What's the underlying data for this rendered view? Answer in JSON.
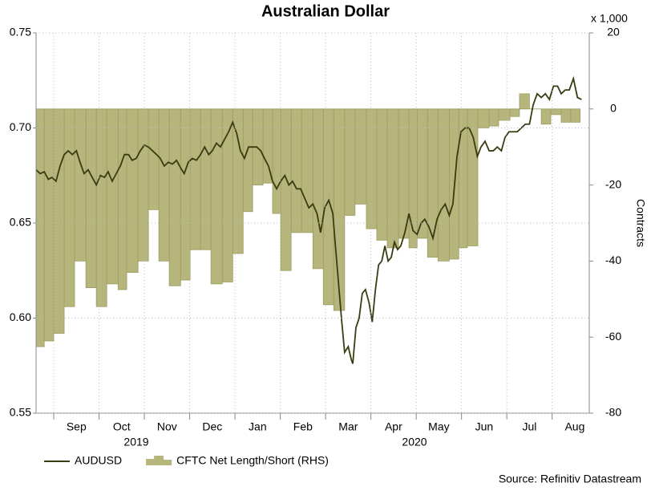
{
  "chart_data": {
    "type": "line",
    "title": "Australian Dollar",
    "y2_label": "Contracts",
    "y2_multiplier": "x 1,000",
    "source": "Source: Refinitiv Datastream",
    "year_labels": [
      "2019",
      "2020"
    ],
    "xlim": [
      0.61,
      12.82
    ],
    "xticks": [
      {
        "value": 1.5,
        "label": "Sep"
      },
      {
        "value": 2.5,
        "label": "Oct"
      },
      {
        "value": 3.5,
        "label": "Nov"
      },
      {
        "value": 4.5,
        "label": "Dec"
      },
      {
        "value": 5.5,
        "label": "Jan"
      },
      {
        "value": 6.5,
        "label": "Feb"
      },
      {
        "value": 7.5,
        "label": "Mar"
      },
      {
        "value": 8.5,
        "label": "Apr"
      },
      {
        "value": 9.5,
        "label": "May"
      },
      {
        "value": 10.5,
        "label": "Jun"
      },
      {
        "value": 11.5,
        "label": "Jul"
      },
      {
        "value": 12.5,
        "label": "Aug"
      }
    ],
    "ylim": [
      0.55,
      0.75
    ],
    "yticks": [
      0.55,
      {
        "value": 0.6,
        "label": "0.60"
      },
      0.65,
      {
        "value": 0.7,
        "label": "0.70"
      },
      0.75
    ],
    "y2lim": [
      -80,
      20
    ],
    "y2ticks": [
      -80,
      -60,
      -40,
      -20,
      0,
      20
    ],
    "grid": true,
    "series": [
      {
        "name": "AUDUSD",
        "color": "#3b3b12",
        "kind": "line",
        "x": [
          0.61,
          0.7,
          0.79,
          0.88,
          0.96,
          1.05,
          1.14,
          1.23,
          1.32,
          1.41,
          1.5,
          1.58,
          1.67,
          1.76,
          1.85,
          1.94,
          2.03,
          2.12,
          2.2,
          2.29,
          2.38,
          2.47,
          2.56,
          2.65,
          2.73,
          2.82,
          2.91,
          3.0,
          3.09,
          3.18,
          3.27,
          3.35,
          3.44,
          3.53,
          3.62,
          3.71,
          3.8,
          3.88,
          3.97,
          4.06,
          4.15,
          4.24,
          4.33,
          4.42,
          4.5,
          4.59,
          4.68,
          4.77,
          4.86,
          4.95,
          5.04,
          5.12,
          5.21,
          5.3,
          5.39,
          5.48,
          5.57,
          5.65,
          5.74,
          5.83,
          5.92,
          6.01,
          6.1,
          6.19,
          6.27,
          6.36,
          6.45,
          6.54,
          6.63,
          6.72,
          6.81,
          6.89,
          6.98,
          7.07,
          7.16,
          7.21,
          7.28,
          7.35,
          7.42,
          7.5,
          7.57,
          7.6,
          7.67,
          7.74,
          7.81,
          7.88,
          7.96,
          8.03,
          8.1,
          8.17,
          8.24,
          8.31,
          8.38,
          8.45,
          8.52,
          8.59,
          8.66,
          8.75,
          8.84,
          8.93,
          9.02,
          9.11,
          9.19,
          9.28,
          9.37,
          9.46,
          9.55,
          9.64,
          9.73,
          9.81,
          9.9,
          9.99,
          10.08,
          10.17,
          10.26,
          10.35,
          10.43,
          10.52,
          10.61,
          10.7,
          10.79,
          10.88,
          10.96,
          11.05,
          11.14,
          11.23,
          11.32,
          11.41,
          11.5,
          11.58,
          11.67,
          11.76,
          11.85,
          11.94,
          12.03,
          12.12,
          12.2,
          12.29,
          12.38,
          12.47,
          12.56,
          12.65
        ],
        "values": [
          0.678,
          0.676,
          0.677,
          0.673,
          0.674,
          0.672,
          0.68,
          0.686,
          0.688,
          0.686,
          0.688,
          0.682,
          0.676,
          0.678,
          0.674,
          0.67,
          0.675,
          0.674,
          0.677,
          0.672,
          0.676,
          0.68,
          0.686,
          0.686,
          0.683,
          0.684,
          0.688,
          0.691,
          0.69,
          0.688,
          0.686,
          0.684,
          0.68,
          0.682,
          0.681,
          0.683,
          0.679,
          0.676,
          0.682,
          0.684,
          0.683,
          0.686,
          0.69,
          0.686,
          0.688,
          0.692,
          0.69,
          0.694,
          0.698,
          0.703,
          0.697,
          0.688,
          0.684,
          0.69,
          0.69,
          0.69,
          0.688,
          0.684,
          0.68,
          0.672,
          0.668,
          0.672,
          0.675,
          0.67,
          0.672,
          0.668,
          0.668,
          0.663,
          0.658,
          0.66,
          0.655,
          0.645,
          0.658,
          0.662,
          0.655,
          0.64,
          0.62,
          0.6,
          0.582,
          0.585,
          0.578,
          0.576,
          0.595,
          0.6,
          0.613,
          0.615,
          0.608,
          0.598,
          0.615,
          0.628,
          0.63,
          0.638,
          0.63,
          0.632,
          0.64,
          0.636,
          0.638,
          0.645,
          0.655,
          0.646,
          0.644,
          0.65,
          0.652,
          0.648,
          0.642,
          0.652,
          0.657,
          0.66,
          0.654,
          0.66,
          0.685,
          0.698,
          0.7,
          0.7,
          0.695,
          0.685,
          0.69,
          0.693,
          0.688,
          0.688,
          0.69,
          0.688,
          0.695,
          0.698,
          0.698,
          0.698,
          0.7,
          0.702,
          0.702,
          0.712,
          0.718,
          0.716,
          0.718,
          0.715,
          0.722,
          0.722,
          0.718,
          0.72,
          0.72,
          0.726,
          0.716,
          0.715
        ]
      },
      {
        "name": "CFTC Net Length/Short (RHS)",
        "color": "#b5b57c",
        "kind": "step-area",
        "axis": "y2",
        "x": [
          0.61,
          0.79,
          1.0,
          1.23,
          1.46,
          1.71,
          1.94,
          2.17,
          2.42,
          2.61,
          2.86,
          3.09,
          3.32,
          3.55,
          3.8,
          4.01,
          4.24,
          4.47,
          4.72,
          4.95,
          5.18,
          5.39,
          5.62,
          5.83,
          6.01,
          6.24,
          6.47,
          6.72,
          6.95,
          7.18,
          7.42,
          7.65,
          7.9,
          8.13,
          8.36,
          8.61,
          8.84,
          9.02,
          9.25,
          9.48,
          9.73,
          9.94,
          10.13,
          10.36,
          10.61,
          10.82,
          11.07,
          11.28,
          11.5,
          11.76,
          11.97,
          12.2,
          12.41
        ],
        "values": [
          -62.5,
          -61,
          -59,
          -52,
          -40,
          -47,
          -52,
          -46,
          -47.5,
          -43,
          -40,
          -26.5,
          -40,
          -46.5,
          -45,
          -37,
          -37,
          -46,
          -45.5,
          -38,
          -27,
          -20,
          -19.5,
          -27.5,
          -42.5,
          -32.5,
          -32.5,
          -42,
          -51.5,
          -53,
          -28,
          -25,
          -31.5,
          -34.5,
          -36.5,
          -34,
          -36.5,
          -34,
          -39,
          -40,
          -39.5,
          -36.5,
          -36,
          -5,
          -4.5,
          -3,
          -2,
          4,
          0,
          -4,
          -1.5,
          -3.5,
          -3.5
        ]
      }
    ]
  }
}
